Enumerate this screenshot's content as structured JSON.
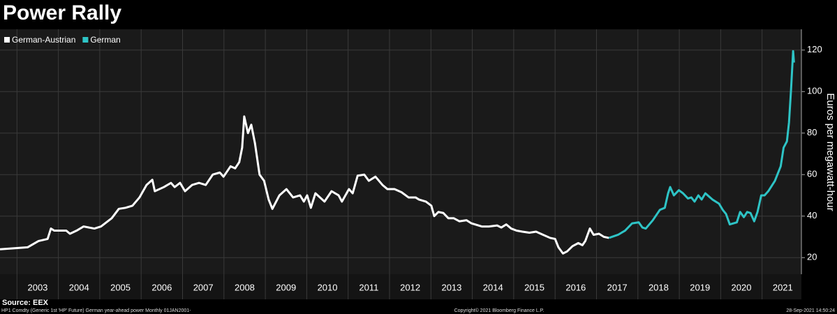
{
  "chart_data": {
    "type": "line",
    "title": "Power Rally",
    "y_label": "Euros per megawatt-hour",
    "source": "Source: EEX",
    "footer": [
      "HP1 Comdty (Generic 1st 'HP' Future) German year-ahead power  Monthly 01JAN2001-",
      "Copyright© 2021 Bloomberg Finance L.P.",
      "28-Sep-2021 14:50:24"
    ],
    "xlim": [
      2002.59,
      2021.95
    ],
    "ylim": [
      12,
      130
    ],
    "yticks": [
      20,
      40,
      60,
      80,
      100,
      120
    ],
    "xticks": [
      {
        "value": 2003.5,
        "label": "2003"
      },
      {
        "value": 2004.5,
        "label": "2004"
      },
      {
        "value": 2005.5,
        "label": "2005"
      },
      {
        "value": 2006.5,
        "label": "2006"
      },
      {
        "value": 2007.5,
        "label": "2007"
      },
      {
        "value": 2008.5,
        "label": "2008"
      },
      {
        "value": 2009.5,
        "label": "2009"
      },
      {
        "value": 2010.5,
        "label": "2010"
      },
      {
        "value": 2011.5,
        "label": "2011"
      },
      {
        "value": 2012.5,
        "label": "2012"
      },
      {
        "value": 2013.5,
        "label": "2013"
      },
      {
        "value": 2014.5,
        "label": "2014"
      },
      {
        "value": 2015.5,
        "label": "2015"
      },
      {
        "value": 2016.5,
        "label": "2016"
      },
      {
        "value": 2017.5,
        "label": "2017"
      },
      {
        "value": 2018.5,
        "label": "2018"
      },
      {
        "value": 2019.5,
        "label": "2019"
      },
      {
        "value": 2020.5,
        "label": "2020"
      },
      {
        "value": 2021.5,
        "label": "2021"
      }
    ],
    "xgrid": [
      2003,
      2004,
      2005,
      2006,
      2007,
      2008,
      2009,
      2010,
      2011,
      2012,
      2013,
      2014,
      2015,
      2016,
      2017,
      2018,
      2019,
      2020,
      2021
    ],
    "grid": true,
    "legend": "top-left",
    "series": [
      {
        "name": "German-Austrian",
        "color": "#ffffff",
        "x": [
          2002.59,
          2003.26,
          2003.52,
          2003.74,
          2003.82,
          2003.9,
          2004.19,
          2004.28,
          2004.44,
          2004.61,
          2004.87,
          2005.03,
          2005.29,
          2005.46,
          2005.62,
          2005.79,
          2005.96,
          2006.13,
          2006.27,
          2006.33,
          2006.55,
          2006.72,
          2006.81,
          2006.94,
          2007.06,
          2007.23,
          2007.4,
          2007.56,
          2007.73,
          2007.9,
          2007.99,
          2008.16,
          2008.27,
          2008.37,
          2008.44,
          2008.49,
          2008.58,
          2008.66,
          2008.75,
          2008.86,
          2008.97,
          2009.08,
          2009.17,
          2009.34,
          2009.51,
          2009.67,
          2009.84,
          2009.93,
          2010.01,
          2010.1,
          2010.21,
          2010.43,
          2010.6,
          2010.77,
          2010.85,
          2011.02,
          2011.11,
          2011.23,
          2011.39,
          2011.5,
          2011.66,
          2011.83,
          2011.95,
          2012.12,
          2012.29,
          2012.46,
          2012.63,
          2012.71,
          2012.88,
          2013.01,
          2013.08,
          2013.18,
          2013.3,
          2013.42,
          2013.55,
          2013.69,
          2013.86,
          2013.98,
          2014.23,
          2014.4,
          2014.6,
          2014.7,
          2014.82,
          2014.94,
          2015.07,
          2015.21,
          2015.38,
          2015.54,
          2015.71,
          2015.88,
          2016.0,
          2016.08,
          2016.19,
          2016.29,
          2016.42,
          2016.56,
          2016.66,
          2016.73,
          2016.84,
          2016.93,
          2017.06,
          2017.18,
          2017.3
        ],
        "values": [
          24,
          25,
          28,
          29,
          34,
          33,
          33,
          31.5,
          33,
          35,
          34,
          35,
          39,
          43.5,
          44,
          45,
          49,
          55,
          57.5,
          52,
          54,
          56,
          54,
          56,
          52,
          55,
          56,
          55,
          60,
          61,
          59,
          64,
          63,
          66,
          73,
          88,
          80,
          84,
          75,
          60,
          57,
          48,
          43.5,
          50,
          53,
          49,
          50,
          47,
          50,
          44,
          51,
          47,
          52,
          50,
          47,
          53,
          51,
          59.5,
          60,
          57,
          59,
          55,
          53,
          53,
          51.5,
          49,
          49,
          48,
          47,
          45,
          40,
          42,
          41.5,
          39,
          39,
          37.5,
          38,
          36.5,
          35,
          35,
          35.5,
          34.5,
          36,
          34,
          33,
          32.5,
          32,
          32.5,
          31,
          29.5,
          29,
          25,
          22,
          23,
          25.5,
          27,
          26,
          28,
          34,
          31,
          31.5,
          30,
          29.5
        ]
      },
      {
        "name": "German",
        "color": "#2ec4c6",
        "x": [
          2017.3,
          2017.52,
          2017.69,
          2017.86,
          2018.02,
          2018.11,
          2018.19,
          2018.36,
          2018.53,
          2018.65,
          2018.73,
          2018.78,
          2018.87,
          2018.99,
          2019.09,
          2019.21,
          2019.29,
          2019.37,
          2019.46,
          2019.54,
          2019.63,
          2019.8,
          2019.96,
          2020.05,
          2020.13,
          2020.22,
          2020.39,
          2020.47,
          2020.56,
          2020.64,
          2020.72,
          2020.81,
          2020.89,
          2020.98,
          2021.06,
          2021.15,
          2021.31,
          2021.45,
          2021.52,
          2021.6,
          2021.65,
          2021.7,
          2021.75,
          2021.77
        ],
        "values": [
          29.5,
          31,
          33,
          36.5,
          37,
          34.5,
          34,
          38,
          43,
          44,
          51,
          54,
          50,
          52.5,
          51,
          48.5,
          49,
          47,
          50,
          48,
          51,
          48,
          46,
          43,
          41,
          36,
          37,
          42,
          39.5,
          42,
          41.5,
          37.5,
          42,
          50,
          50,
          52,
          57,
          64,
          73,
          76,
          85,
          101,
          119.5,
          114
        ]
      }
    ]
  }
}
